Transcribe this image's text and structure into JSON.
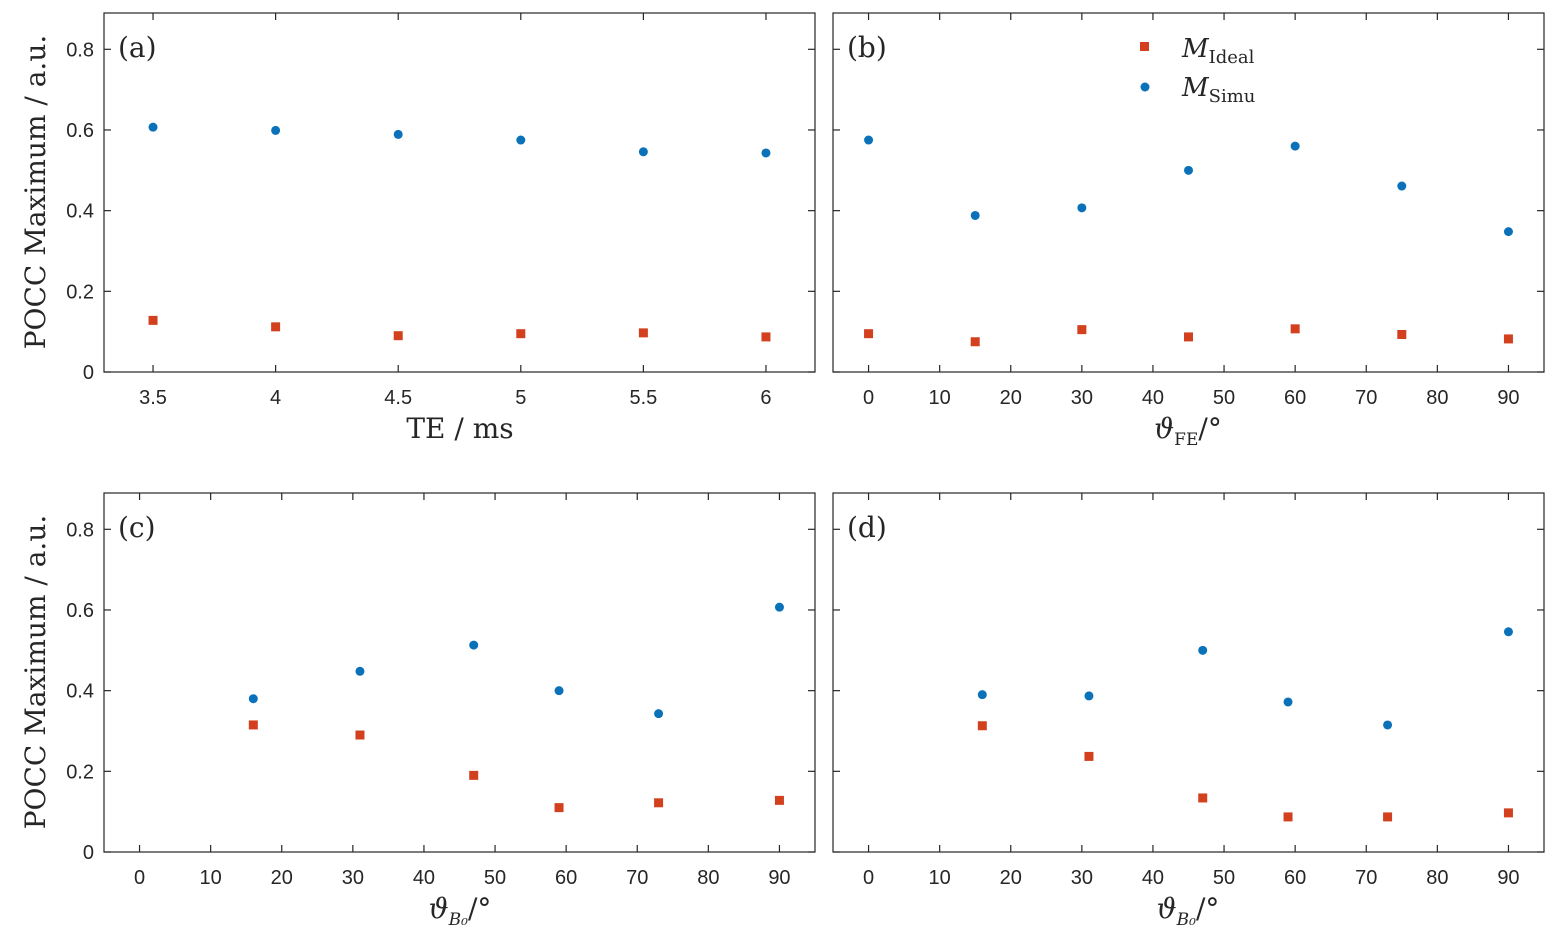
{
  "colors": {
    "ideal": "#d3401e",
    "simu": "#0b72b9"
  },
  "legend": {
    "entries": [
      {
        "series": "ideal",
        "main": "M",
        "sub": "Ideal",
        "marker": "square"
      },
      {
        "series": "simu",
        "main": "M",
        "sub": "Simu",
        "marker": "circle"
      }
    ]
  },
  "chart_data": [
    {
      "panel": "(a)",
      "type": "scatter",
      "xlabel": "TE / ms",
      "ylabel": "POCC Maximum / a.u.",
      "xlim": [
        3.3,
        6.2
      ],
      "ylim": [
        0,
        0.89
      ],
      "xticks": [
        3.5,
        4,
        4.5,
        5,
        5.5,
        6
      ],
      "xtick_labels": [
        "3.5",
        "4",
        "4.5",
        "5",
        "5.5",
        "6"
      ],
      "yticks": [
        0,
        0.2,
        0.4,
        0.6,
        0.8
      ],
      "ytick_labels": [
        "0",
        "0.2",
        "0.4",
        "0.6",
        "0.8"
      ],
      "series": [
        {
          "name": "M_Ideal",
          "x": [
            3.5,
            4,
            4.5,
            5,
            5.5,
            6
          ],
          "y": [
            0.128,
            0.112,
            0.09,
            0.095,
            0.097,
            0.087
          ]
        },
        {
          "name": "M_Simu",
          "x": [
            3.5,
            4,
            4.5,
            5,
            5.5,
            6
          ],
          "y": [
            0.607,
            0.599,
            0.589,
            0.575,
            0.546,
            0.543
          ]
        }
      ]
    },
    {
      "panel": "(b)",
      "type": "scatter",
      "xlabel": "ϑ",
      "xlabel_sub": "FE",
      "xlabel_suffix": "/°",
      "ylabel": "",
      "xlim": [
        -5,
        95
      ],
      "ylim": [
        0,
        0.89
      ],
      "xticks": [
        0,
        10,
        20,
        30,
        40,
        50,
        60,
        70,
        80,
        90
      ],
      "xtick_labels": [
        "0",
        "10",
        "20",
        "30",
        "40",
        "50",
        "60",
        "70",
        "80",
        "90"
      ],
      "yticks": [
        0,
        0.2,
        0.4,
        0.6,
        0.8
      ],
      "ytick_labels": [],
      "series": [
        {
          "name": "M_Ideal",
          "x": [
            0,
            15,
            30,
            45,
            60,
            75,
            90
          ],
          "y": [
            0.095,
            0.075,
            0.105,
            0.087,
            0.107,
            0.093,
            0.082
          ]
        },
        {
          "name": "M_Simu",
          "x": [
            0,
            15,
            30,
            45,
            60,
            75,
            90
          ],
          "y": [
            0.575,
            0.388,
            0.407,
            0.5,
            0.56,
            0.461,
            0.348
          ]
        }
      ]
    },
    {
      "panel": "(c)",
      "type": "scatter",
      "xlabel": "ϑ",
      "xlabel_sub": "B₀",
      "xlabel_suffix": "/°",
      "ylabel": "POCC Maximum / a.u.",
      "xlim": [
        -5,
        95
      ],
      "ylim": [
        0,
        0.89
      ],
      "xticks": [
        0,
        10,
        20,
        30,
        40,
        50,
        60,
        70,
        80,
        90
      ],
      "xtick_labels": [
        "0",
        "10",
        "20",
        "30",
        "40",
        "50",
        "60",
        "70",
        "80",
        "90"
      ],
      "yticks": [
        0,
        0.2,
        0.4,
        0.6,
        0.8
      ],
      "ytick_labels": [
        "0",
        "0.2",
        "0.4",
        "0.6",
        "0.8"
      ],
      "series": [
        {
          "name": "M_Ideal",
          "x": [
            16,
            31,
            47,
            59,
            73,
            90
          ],
          "y": [
            0.315,
            0.29,
            0.19,
            0.11,
            0.122,
            0.128
          ]
        },
        {
          "name": "M_Simu",
          "x": [
            16,
            31,
            47,
            59,
            73,
            90
          ],
          "y": [
            0.38,
            0.448,
            0.513,
            0.4,
            0.343,
            0.607
          ]
        }
      ]
    },
    {
      "panel": "(d)",
      "type": "scatter",
      "xlabel": "ϑ",
      "xlabel_sub": "B₀",
      "xlabel_suffix": "/°",
      "ylabel": "",
      "xlim": [
        -5,
        95
      ],
      "ylim": [
        0,
        0.89
      ],
      "xticks": [
        0,
        10,
        20,
        30,
        40,
        50,
        60,
        70,
        80,
        90
      ],
      "xtick_labels": [
        "0",
        "10",
        "20",
        "30",
        "40",
        "50",
        "60",
        "70",
        "80",
        "90"
      ],
      "yticks": [
        0,
        0.2,
        0.4,
        0.6,
        0.8
      ],
      "ytick_labels": [],
      "series": [
        {
          "name": "M_Ideal",
          "x": [
            16,
            31,
            47,
            59,
            73,
            90
          ],
          "y": [
            0.313,
            0.237,
            0.134,
            0.087,
            0.087,
            0.097
          ]
        },
        {
          "name": "M_Simu",
          "x": [
            16,
            31,
            47,
            59,
            73,
            90
          ],
          "y": [
            0.39,
            0.387,
            0.5,
            0.372,
            0.315,
            0.546
          ]
        }
      ]
    }
  ]
}
